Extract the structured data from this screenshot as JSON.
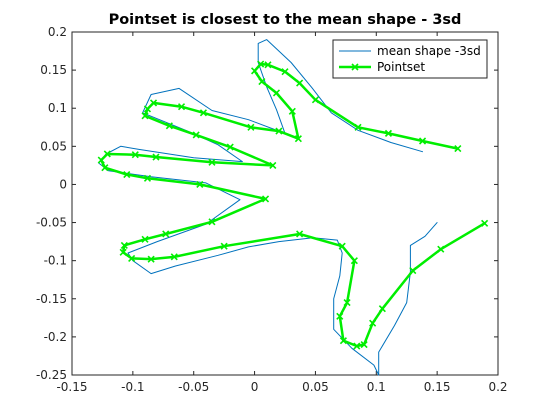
{
  "chart_data": {
    "type": "line",
    "title": "Pointset is closest to the mean shape - 3sd",
    "xlabel": "",
    "ylabel": "",
    "xlim": [
      -0.15,
      0.2
    ],
    "ylim": [
      -0.25,
      0.2
    ],
    "xticks": [
      -0.15,
      -0.1,
      -0.05,
      0,
      0.05,
      0.1,
      0.15,
      0.2
    ],
    "yticks": [
      -0.25,
      -0.2,
      -0.15,
      -0.1,
      -0.05,
      0,
      0.05,
      0.1,
      0.15,
      0.2
    ],
    "xtick_labels": [
      "-0.15",
      "-0.1",
      "-0.05",
      "0",
      "0.05",
      "0.1",
      "0.15",
      "0.2"
    ],
    "ytick_labels": [
      "-0.25",
      "-0.2",
      "-0.15",
      "-0.1",
      "-0.05",
      "0",
      "0.05",
      "0.1",
      "0.15",
      "0.2"
    ],
    "grid": false,
    "legend": {
      "placement": "top-right"
    },
    "series": [
      {
        "name": "mean shape -3sd",
        "color": "#0072BD",
        "marker": "none",
        "points": [
          [
            0.138,
            0.043
          ],
          [
            0.112,
            0.055
          ],
          [
            0.085,
            0.071
          ],
          [
            0.063,
            0.094
          ],
          [
            0.047,
            0.127
          ],
          [
            0.03,
            0.16
          ],
          [
            0.01,
            0.19
          ],
          [
            0.003,
            0.185
          ],
          [
            0.003,
            0.16
          ],
          [
            0.01,
            0.128
          ],
          [
            0.018,
            0.098
          ],
          [
            0.025,
            0.067
          ],
          [
            -0.005,
            0.085
          ],
          [
            -0.035,
            0.097
          ],
          [
            -0.062,
            0.126
          ],
          [
            -0.085,
            0.118
          ],
          [
            -0.092,
            0.094
          ],
          [
            -0.055,
            0.07
          ],
          [
            -0.03,
            0.052
          ],
          [
            -0.01,
            0.03
          ],
          [
            -0.05,
            0.035
          ],
          [
            -0.095,
            0.046
          ],
          [
            -0.11,
            0.05
          ],
          [
            -0.122,
            0.04
          ],
          [
            -0.128,
            0.028
          ],
          [
            -0.12,
            0.018
          ],
          [
            -0.085,
            0.01
          ],
          [
            -0.04,
            0.002
          ],
          [
            -0.012,
            -0.02
          ],
          [
            -0.04,
            -0.052
          ],
          [
            -0.08,
            -0.075
          ],
          [
            -0.104,
            -0.09
          ],
          [
            -0.1,
            -0.1
          ],
          [
            -0.085,
            -0.117
          ],
          [
            -0.065,
            -0.107
          ],
          [
            -0.03,
            -0.093
          ],
          [
            -0.005,
            -0.082
          ],
          [
            0.02,
            -0.075
          ],
          [
            0.048,
            -0.07
          ],
          [
            0.068,
            -0.073
          ],
          [
            0.072,
            -0.09
          ],
          [
            0.07,
            -0.12
          ],
          [
            0.065,
            -0.15
          ],
          [
            0.065,
            -0.19
          ],
          [
            0.08,
            -0.215
          ],
          [
            0.098,
            -0.237
          ],
          [
            0.102,
            -0.25
          ],
          [
            0.102,
            -0.22
          ],
          [
            0.115,
            -0.185
          ],
          [
            0.125,
            -0.155
          ],
          [
            0.128,
            -0.115
          ],
          [
            0.128,
            -0.08
          ],
          [
            0.14,
            -0.068
          ],
          [
            0.15,
            -0.05
          ]
        ]
      },
      {
        "name": "Pointset",
        "color": "#00EE00",
        "marker": "x",
        "points": [
          [
            0.167,
            0.047
          ],
          [
            0.138,
            0.057
          ],
          [
            0.11,
            0.067
          ],
          [
            0.085,
            0.075
          ],
          [
            0.05,
            0.111
          ],
          [
            0.037,
            0.133
          ],
          [
            0.025,
            0.148
          ],
          [
            0.011,
            0.157
          ],
          [
            0.005,
            0.158
          ],
          [
            0.0,
            0.149
          ],
          [
            0.006,
            0.135
          ],
          [
            0.018,
            0.12
          ],
          [
            0.031,
            0.096
          ],
          [
            0.036,
            0.06
          ],
          [
            0.02,
            0.07
          ],
          [
            -0.003,
            0.075
          ],
          [
            -0.042,
            0.094
          ],
          [
            -0.06,
            0.102
          ],
          [
            -0.083,
            0.107
          ],
          [
            -0.088,
            0.099
          ],
          [
            -0.09,
            0.09
          ],
          [
            -0.07,
            0.077
          ],
          [
            -0.048,
            0.065
          ],
          [
            -0.02,
            0.049
          ],
          [
            0.015,
            0.025
          ],
          [
            -0.035,
            0.029
          ],
          [
            -0.081,
            0.036
          ],
          [
            -0.098,
            0.039
          ],
          [
            -0.121,
            0.04
          ],
          [
            -0.126,
            0.032
          ],
          [
            -0.123,
            0.022
          ],
          [
            -0.105,
            0.013
          ],
          [
            -0.088,
            0.008
          ],
          [
            -0.045,
            0.0
          ],
          [
            0.009,
            -0.019
          ],
          [
            -0.035,
            -0.049
          ],
          [
            -0.073,
            -0.065
          ],
          [
            -0.09,
            -0.072
          ],
          [
            -0.107,
            -0.08
          ],
          [
            -0.108,
            -0.089
          ],
          [
            -0.101,
            -0.097
          ],
          [
            -0.085,
            -0.098
          ],
          [
            -0.066,
            -0.095
          ],
          [
            -0.025,
            -0.081
          ],
          [
            0.037,
            -0.065
          ],
          [
            0.072,
            -0.081
          ],
          [
            0.082,
            -0.1
          ],
          [
            0.076,
            -0.155
          ],
          [
            0.07,
            -0.173
          ],
          [
            0.073,
            -0.205
          ],
          [
            0.084,
            -0.212
          ],
          [
            0.09,
            -0.21
          ],
          [
            0.097,
            -0.182
          ],
          [
            0.105,
            -0.163
          ],
          [
            0.13,
            -0.113
          ],
          [
            0.153,
            -0.085
          ],
          [
            0.189,
            -0.051
          ]
        ]
      }
    ]
  }
}
